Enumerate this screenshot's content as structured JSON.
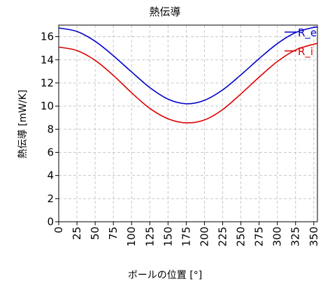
{
  "chart_data": {
    "type": "line",
    "title": "熱伝導",
    "xlabel": "ボールの位置 [°]",
    "ylabel": "熱伝導 [mW/K]",
    "xlim": [
      0,
      355
    ],
    "ylim": [
      0,
      17
    ],
    "x_ticks": [
      "0",
      "25",
      "50",
      "75",
      "100",
      "125",
      "150",
      "175",
      "200",
      "225",
      "250",
      "275",
      "300",
      "325",
      "350"
    ],
    "y_ticks": [
      "0",
      "2",
      "4",
      "6",
      "8",
      "10",
      "12",
      "14",
      "16"
    ],
    "grid": true,
    "legend_position": "top-right",
    "series": [
      {
        "name": "R_e",
        "color": "#0000cc",
        "x": [
          0,
          25,
          50,
          75,
          100,
          125,
          150,
          175,
          200,
          225,
          250,
          275,
          300,
          325,
          350,
          355
        ],
        "y": [
          16.75,
          16.45,
          15.6,
          14.35,
          12.95,
          11.6,
          10.6,
          10.2,
          10.5,
          11.4,
          12.7,
          14.1,
          15.4,
          16.35,
          16.8,
          16.8
        ]
      },
      {
        "name": "R_i",
        "color": "#dd0000",
        "x": [
          0,
          25,
          50,
          75,
          100,
          125,
          150,
          175,
          200,
          225,
          250,
          275,
          300,
          325,
          350,
          355
        ],
        "y": [
          15.1,
          14.8,
          13.95,
          12.65,
          11.15,
          9.8,
          8.9,
          8.55,
          8.8,
          9.7,
          11.05,
          12.5,
          13.85,
          14.85,
          15.35,
          15.4
        ]
      }
    ]
  }
}
